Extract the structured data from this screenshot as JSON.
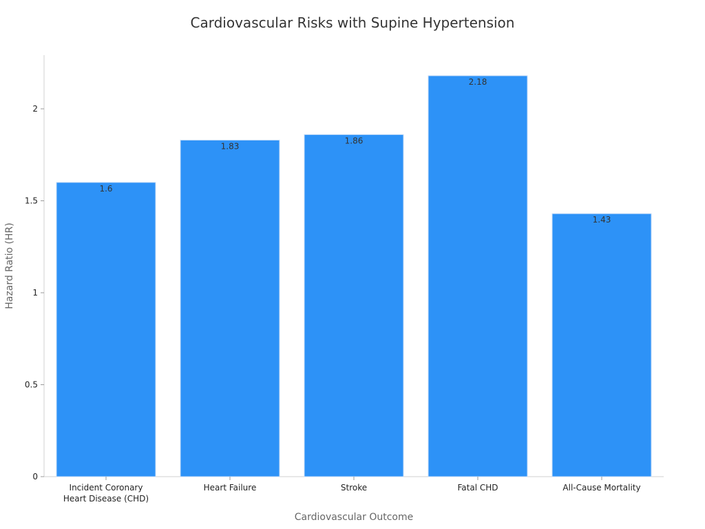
{
  "chart_data": {
    "type": "bar",
    "title": "Cardiovascular Risks with Supine Hypertension",
    "xlabel": "Cardiovascular Outcome",
    "ylabel": "Hazard Ratio (HR)",
    "categories": [
      "Incident Coronary Heart Disease (CHD)",
      "Heart Failure",
      "Stroke",
      "Fatal CHD",
      "All-Cause Mortality"
    ],
    "category_lines": [
      [
        "Incident Coronary",
        "Heart Disease (CHD)"
      ],
      [
        "Heart Failure"
      ],
      [
        "Stroke"
      ],
      [
        "Fatal CHD"
      ],
      [
        "All-Cause Mortality"
      ]
    ],
    "values": [
      1.6,
      1.83,
      1.86,
      2.18,
      1.43
    ],
    "value_labels": [
      "1.6",
      "1.83",
      "1.86",
      "2.18",
      "1.43"
    ],
    "ylim": [
      0,
      2.3
    ],
    "yticks": [
      0,
      0.5,
      1,
      1.5,
      2
    ],
    "ytick_labels": [
      "0",
      "0.5",
      "1",
      "1.5",
      "2"
    ],
    "grid": false,
    "legend": "none",
    "colors": {
      "bar": "#2d92f7",
      "bar_edge": "#c9def7"
    }
  }
}
